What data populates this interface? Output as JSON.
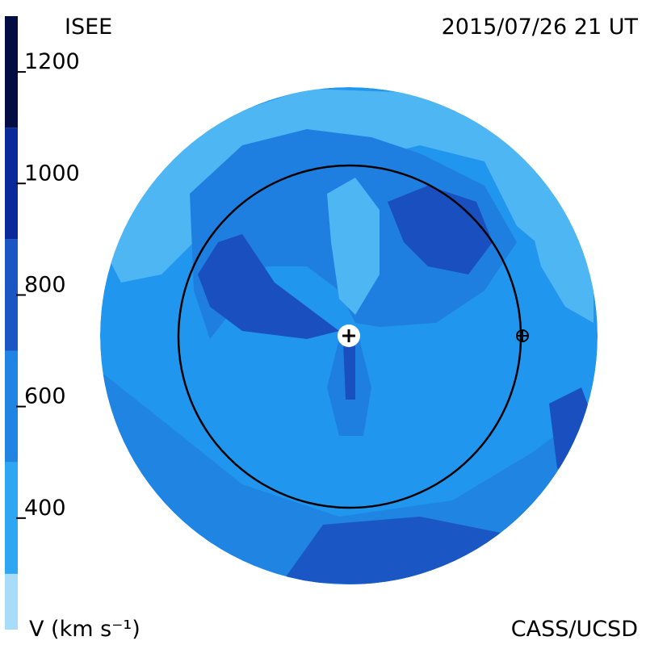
{
  "chart_data": {
    "type": "velocity-map",
    "title": "ISEE",
    "date": "2015/07/26 21 UT",
    "credit": "CASS/UCSD",
    "colorbar_label": "V (km s⁻¹)",
    "colorbar_lim": [
      200,
      1300
    ],
    "colorbar_ticks": [
      400,
      600,
      800,
      1000,
      1200
    ],
    "colorbar_levels": [
      200,
      300,
      500,
      700,
      900,
      1100,
      1300
    ],
    "colorbar_colors": [
      "#a9dcf8",
      "#2fa6f2",
      "#1f84e2",
      "#1a57c4",
      "#0a2a9a",
      "#040c44"
    ]
  }
}
